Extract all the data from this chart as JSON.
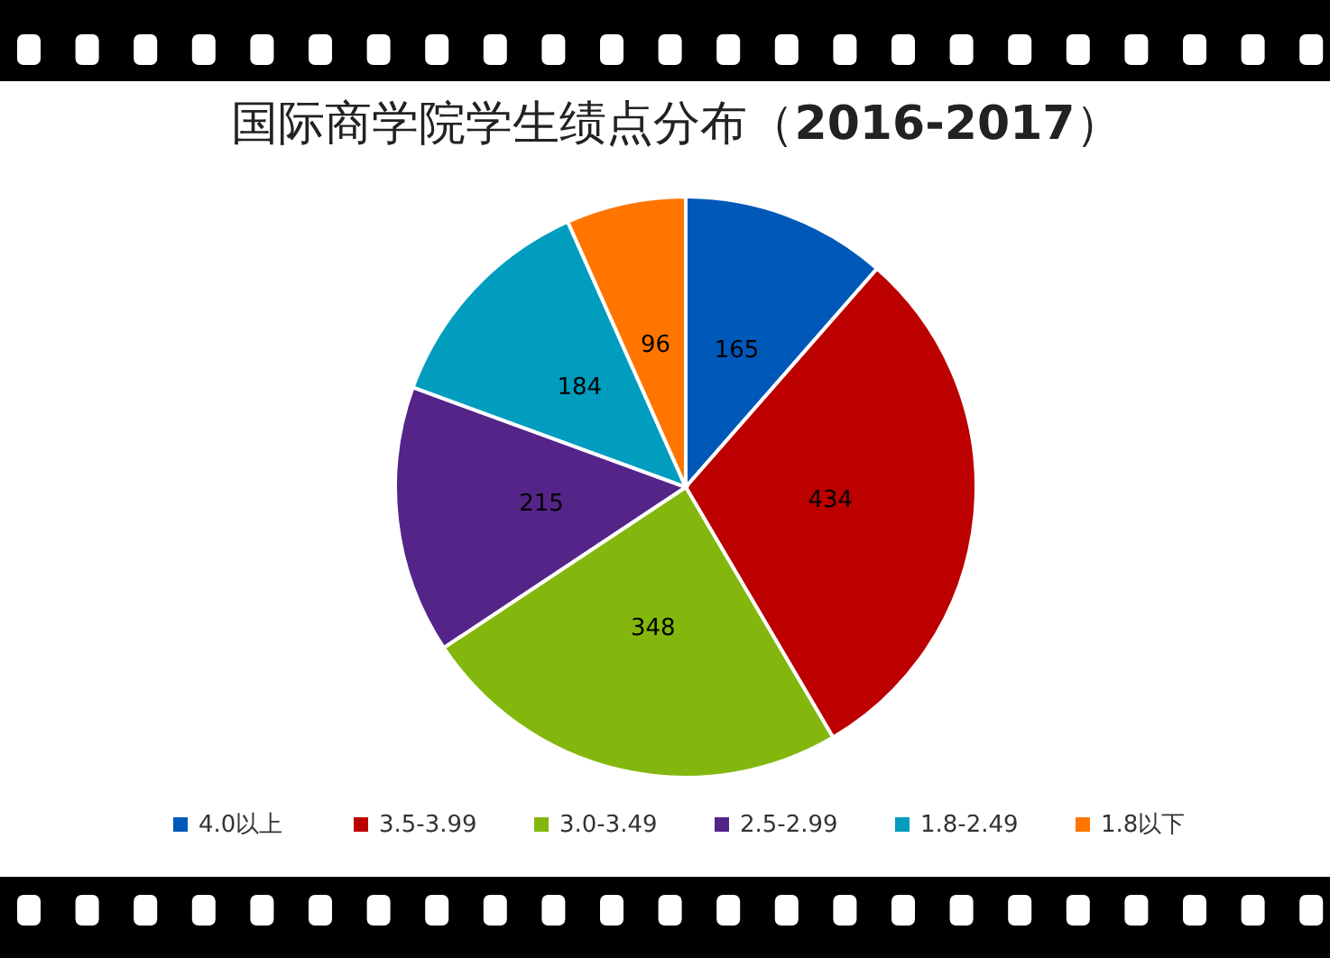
{
  "chart_data": {
    "type": "pie",
    "title": "国际商学院学生绩点分布（2016-2017）",
    "categories": [
      "4.0以上",
      "3.5-3.99",
      "3.0-3.49",
      "2.5-2.99",
      "1.8-2.49",
      "1.8以下"
    ],
    "values": [
      165,
      434,
      348,
      215,
      184,
      96
    ],
    "colors": [
      "#0058b8",
      "#bc0000",
      "#84b70e",
      "#542489",
      "#009dbf",
      "#ff7500"
    ],
    "data_labels": true,
    "legend": "bottom"
  }
}
